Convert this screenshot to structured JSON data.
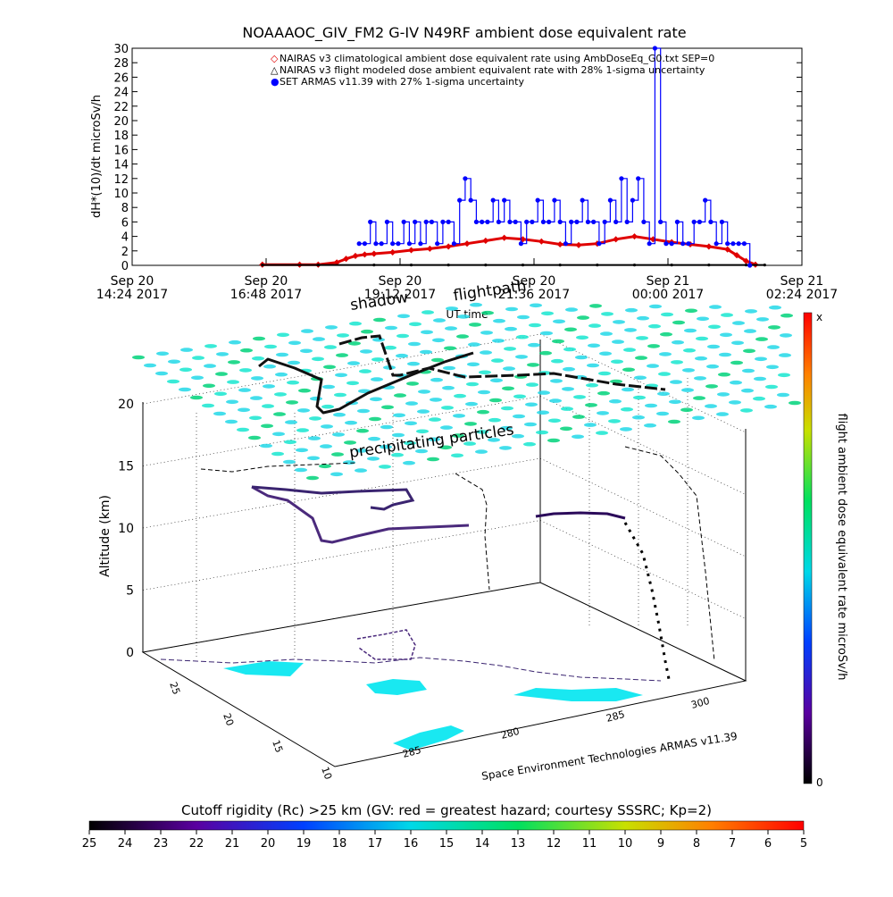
{
  "chart_data": [
    {
      "type": "line",
      "title": "NOAAAOC_GIV_FM2 G-IV   N49RF   ambient dose equivalent rate",
      "ylabel": "dH*(10)/dt microSv/h",
      "xlabel": "UT time",
      "ylim": [
        0,
        30
      ],
      "yticks": [
        "0",
        "2",
        "4",
        "6",
        "8",
        "10",
        "12",
        "14",
        "16",
        "18",
        "20",
        "22",
        "24",
        "26",
        "28",
        "30"
      ],
      "xticks": [
        {
          "t": 0,
          "line1": "Sep 20",
          "line2": "14:24 2017"
        },
        {
          "t": 144,
          "line1": "Sep 20",
          "line2": "16:48 2017"
        },
        {
          "t": 288,
          "line1": "Sep 20",
          "line2": "19:12 2017"
        },
        {
          "t": 432,
          "line1": "Sep 20",
          "line2": "21:36 2017"
        },
        {
          "t": 576,
          "line1": "Sep 21",
          "line2": "00:00 2017"
        },
        {
          "t": 720,
          "line1": "Sep 21",
          "line2": "02:24 2017"
        }
      ],
      "legend": [
        {
          "symbol": "◇",
          "color": "#e00000",
          "text": "NAIRAS v3 climatological ambient dose equivalent rate using AmbDoseEq_G0.txt SEP=0"
        },
        {
          "symbol": "△",
          "color": "#000000",
          "text": "NAIRAS v3 flight modeled dose ambient equivalent rate with 28% 1-sigma uncertainty"
        },
        {
          "symbol": "●",
          "color": "#0000ff",
          "text": "SET ARMAS v11.39 with 27% 1-sigma uncertainty"
        }
      ],
      "legend_position": "top-right",
      "series": [
        {
          "name": "NAIRAS v3 climatological ambient dose equivalent rate using AmbDoseEq_G0.txt SEP=0",
          "color": "#e00000",
          "x": [
            140,
            180,
            200,
            220,
            230,
            240,
            250,
            260,
            280,
            300,
            320,
            340,
            360,
            380,
            400,
            420,
            440,
            460,
            480,
            500,
            520,
            540,
            560,
            580,
            600,
            620,
            640,
            650,
            660,
            670
          ],
          "y": [
            0.1,
            0.1,
            0.1,
            0.4,
            0.9,
            1.3,
            1.5,
            1.6,
            1.8,
            2.1,
            2.3,
            2.6,
            3.0,
            3.4,
            3.8,
            3.6,
            3.3,
            2.9,
            2.8,
            3.0,
            3.6,
            4.0,
            3.6,
            3.2,
            2.9,
            2.6,
            2.2,
            1.4,
            0.6,
            0.1
          ]
        },
        {
          "name": "NAIRAS v3 flight modeled dose ambient equivalent rate with 28% 1-sigma uncertainty",
          "color": "#000000",
          "x": [
            140,
            200,
            260,
            300,
            340,
            380,
            420,
            460,
            500,
            540,
            580,
            620,
            660,
            680
          ],
          "y": [
            0.05,
            0.05,
            0.05,
            0.05,
            0.05,
            0.05,
            0.05,
            0.05,
            0.05,
            0.05,
            0.05,
            0.05,
            0.05,
            0.05
          ]
        },
        {
          "name": "SET ARMAS v11.39 with 27% 1-sigma uncertainty",
          "color": "#0000ff",
          "x": [
            244,
            250,
            256,
            262,
            268,
            274,
            280,
            286,
            292,
            298,
            304,
            310,
            316,
            322,
            328,
            334,
            340,
            346,
            352,
            358,
            364,
            370,
            376,
            382,
            388,
            394,
            400,
            406,
            412,
            418,
            424,
            430,
            436,
            442,
            448,
            454,
            460,
            466,
            472,
            478,
            484,
            490,
            496,
            502,
            508,
            514,
            520,
            526,
            532,
            538,
            544,
            550,
            556,
            562,
            568,
            574,
            580,
            586,
            592,
            598,
            604,
            610,
            616,
            622,
            628,
            634,
            640,
            646,
            652,
            658,
            664
          ],
          "y": [
            3,
            3,
            6,
            3,
            3,
            6,
            3,
            3,
            6,
            3,
            6,
            3,
            6,
            6,
            3,
            6,
            6,
            3,
            9,
            12,
            9,
            6,
            6,
            6,
            9,
            6,
            9,
            6,
            6,
            3,
            6,
            6,
            9,
            6,
            6,
            9,
            6,
            3,
            6,
            6,
            9,
            6,
            6,
            3,
            6,
            9,
            6,
            12,
            6,
            9,
            12,
            6,
            3,
            30,
            6,
            3,
            3,
            6,
            3,
            3,
            6,
            6,
            9,
            6,
            3,
            6,
            3,
            3,
            3,
            3,
            0
          ]
        }
      ]
    },
    {
      "type": "scatter",
      "zlabel": "Altitude (km)",
      "zticks": [
        "0",
        "5",
        "10",
        "15",
        "20"
      ],
      "annotations": [
        "flightpath",
        "shadow",
        "precipitating particles",
        "Space Environment Technologies ARMAS v11.39"
      ],
      "lat_ticks": [
        "25",
        "20",
        "15",
        "10"
      ],
      "lon_ticks": [
        "285",
        "280",
        "285",
        "300"
      ],
      "colorbar": {
        "label": "flight ambient dose equivalent rate microSv/h",
        "max_label": "x",
        "min_label": "0"
      }
    },
    {
      "type": "heatmap",
      "title": "Cutoff rigidity (Rc) >25 km (GV: red = greatest hazard; courtesy SSSRC; Kp=2)",
      "ticks": [
        "25",
        "24",
        "23",
        "22",
        "21",
        "20",
        "19",
        "18",
        "17",
        "16",
        "15",
        "14",
        "13",
        "12",
        "11",
        "10",
        "9",
        "8",
        "7",
        "6",
        "5"
      ]
    }
  ]
}
